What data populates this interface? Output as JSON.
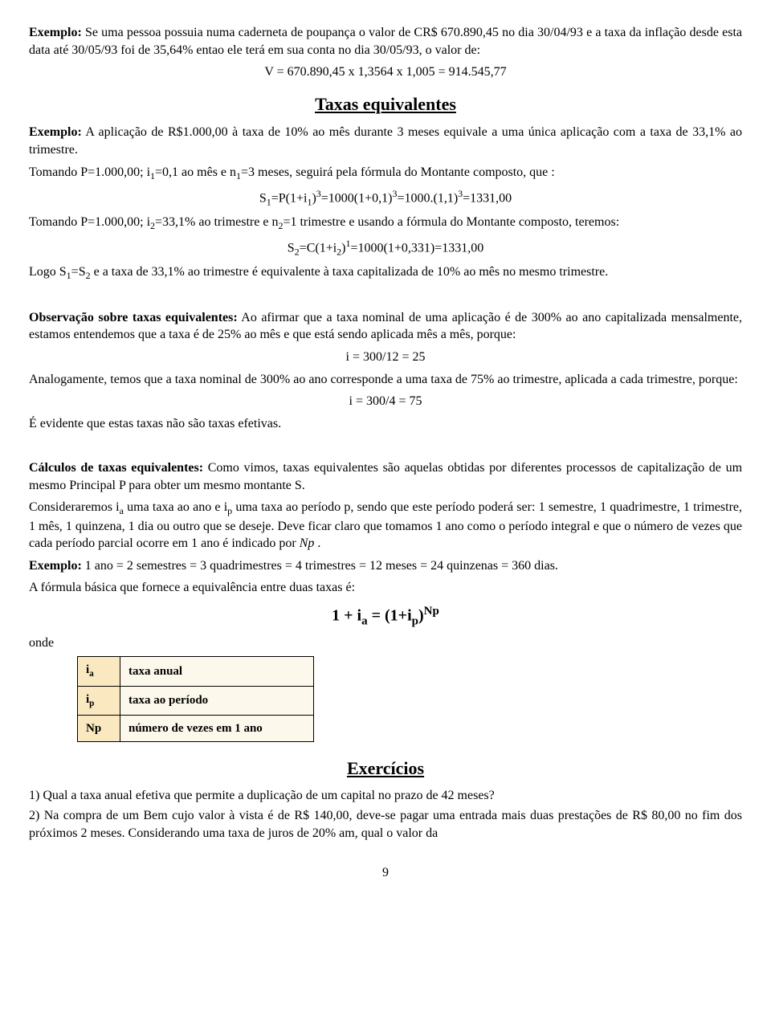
{
  "ex1": {
    "label": "Exemplo:",
    "text_a": " Se uma pessoa possuia numa caderneta de poupança o valor de CR$ 670.890,45 no dia 30/04/93 e a taxa da inflação desde esta data até 30/05/93 foi de 35,64% entao ele terá em sua conta no dia 30/05/93, o valor de:",
    "formula": "V = 670.890,45 x 1,3564 x 1,005 = 914.545,77"
  },
  "title_taxas": "Taxas  equivalentes",
  "ex2": {
    "label": "Exemplo:",
    "text_a": " A aplicação de R$1.000,00 à taxa de 10% ao mês durante 3 meses equivale a uma única aplicação com a taxa de 33,1% ao trimestre.",
    "line2_a": "Tomando P=1.000,00; i",
    "line2_b": "=0,1 ao mês e n",
    "line2_c": "=3 meses, seguirá pela fórmula do Montante composto, que :",
    "formula1_a": "S",
    "formula1_b": "=P(1+i",
    "formula1_c": ")",
    "formula1_d": "=1000(1+0,1)",
    "formula1_e": "=1000.(1,1)",
    "formula1_f": "=1331,00",
    "line3_a": "Tomando P=1.000,00; i",
    "line3_b": "=33,1% ao trimestre e n",
    "line3_c": "=1 trimestre e usando a fórmula do Montante composto, teremos:",
    "formula2_a": "S",
    "formula2_b": "=C(1+i",
    "formula2_c": ")",
    "formula2_d": "=1000(1+0,331)=1331,00",
    "line4_a": "Logo S",
    "line4_b": "=S",
    "line4_c": " e a taxa de 33,1% ao trimestre é equivalente à taxa capitalizada de 10% ao mês no mesmo trimestre."
  },
  "obs": {
    "label": "Observação sobre taxas equivalentes:",
    "text1": " Ao afirmar que a taxa nominal de uma aplicação é de 300% ao ano capitalizada mensalmente, estamos entendemos que a taxa é de 25% ao mês e que está sendo aplicada mês a mês, porque:",
    "f1": "i = 300/12 = 25",
    "text2": "Analogamente, temos que a taxa nominal de 300% ao ano corresponde a uma taxa de 75% ao trimestre, aplicada a cada trimestre, porque:",
    "f2": "i = 300/4 = 75",
    "text3": "É evidente que estas taxas não são taxas efetivas."
  },
  "calc": {
    "label": "Cálculos de taxas equivalentes:",
    "text1": " Como vimos, taxas equivalentes são aquelas obtidas por diferentes processos de capitalização de um mesmo Principal P para obter um mesmo montante S.",
    "text2_a": "Consideraremos i",
    "text2_b": " uma taxa ao ano e i",
    "text2_c": " uma taxa ao período p, sendo que este período poderá ser: 1 semestre, 1 quadrimestre, 1 trimestre, 1 mês, 1 quinzena, 1 dia ou outro que se deseje. Deve ficar claro que tomamos 1 ano como o período integral e que o número de vezes que cada período parcial ocorre em 1 ano é indicado por ",
    "np": "Np",
    "text2_d": " .",
    "ex_label": "Exemplo:",
    "text3": " 1 ano = 2 semestres = 3 quadrimestres = 4 trimestres = 12 meses = 24 quinzenas = 360 dias.",
    "text4": "A fórmula básica que fornece a equivalência entre duas taxas é:",
    "formula_a": "1 + i",
    "formula_b": " = (1+i",
    "formula_c": ")",
    "onde": "onde"
  },
  "table": {
    "rows": [
      {
        "sym_a": "i",
        "sym_sub": "a",
        "desc": "taxa anual"
      },
      {
        "sym_a": "i",
        "sym_sub": "p",
        "desc": "taxa ao período"
      },
      {
        "sym_a": "Np",
        "sym_sub": "",
        "desc": "número de vezes em 1 ano"
      }
    ]
  },
  "title_ex": "Exercícios",
  "exercises": {
    "e1": "1)  Qual a taxa anual efetiva que permite a duplicação de um capital no prazo de 42 meses?",
    "e2": "2)  Na compra de um Bem cujo valor à vista é de R$ 140,00, deve-se pagar uma entrada mais duas prestações de R$ 80,00 no fim dos próximos 2 meses. Considerando uma taxa de juros de 20% am, qual o valor da"
  },
  "page": "9"
}
